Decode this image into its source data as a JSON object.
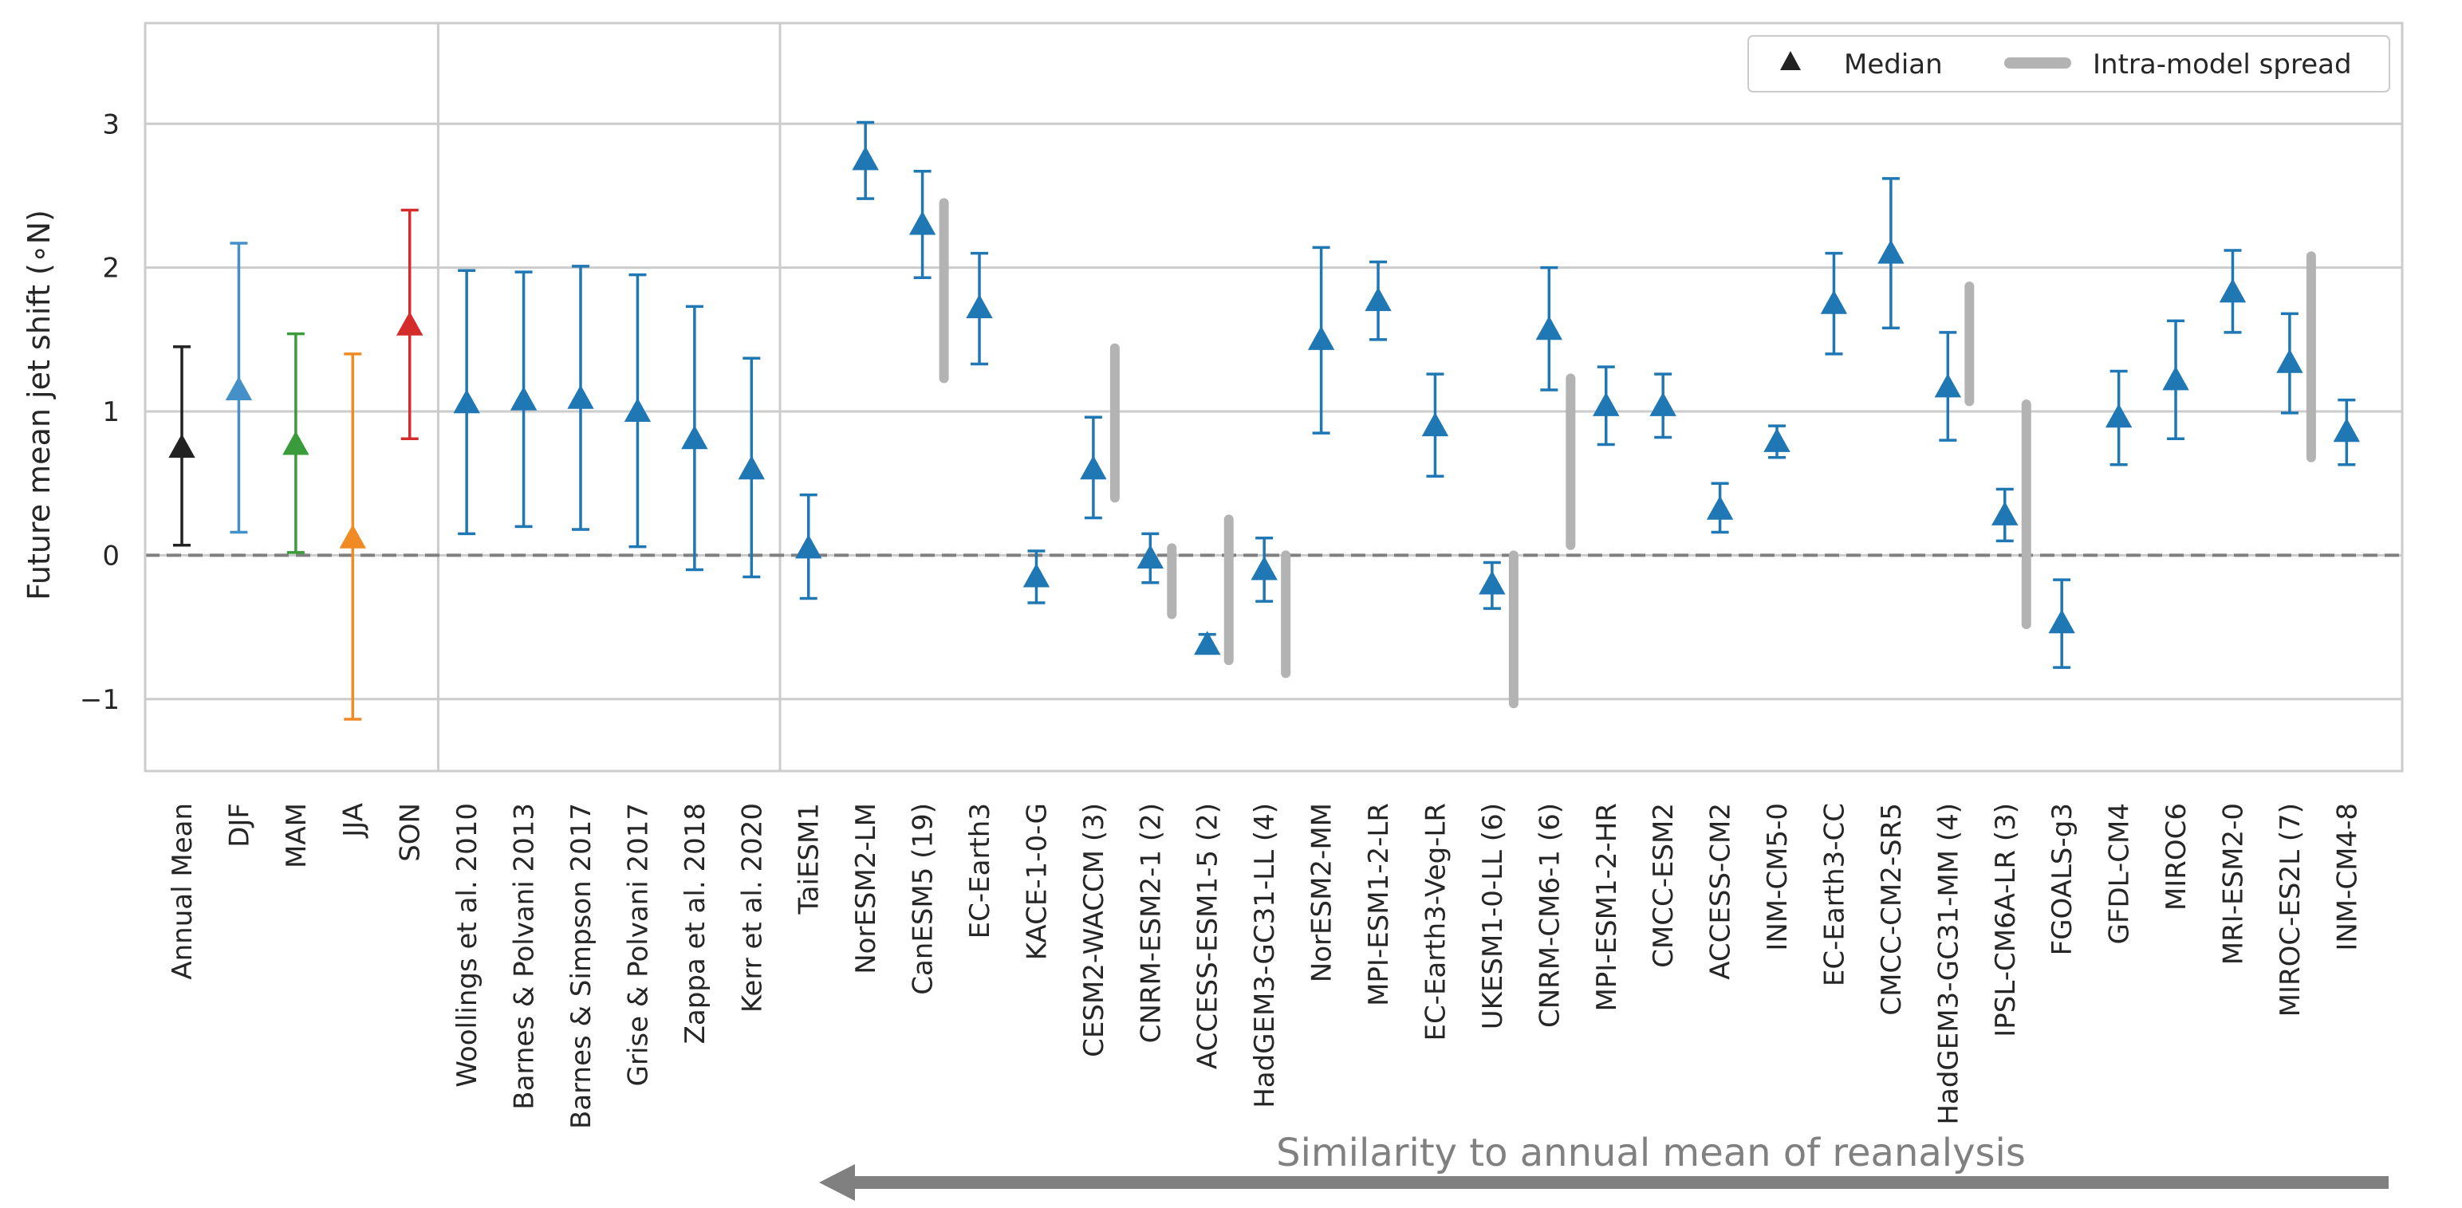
{
  "chart_data": {
    "type": "errorbar",
    "ylabel": "Future mean jet shift (∘N)",
    "ylim": [
      -1.5,
      3.7
    ],
    "yticks": [
      -1,
      0,
      1,
      2,
      3
    ],
    "ytick_labels": [
      "−1",
      "0",
      "1",
      "2",
      "3"
    ],
    "grid": true,
    "zero_line": "dashed",
    "legend": {
      "placement": "top-right",
      "entries": [
        {
          "label": "Median",
          "marker": "triangle",
          "color": "#222222"
        },
        {
          "label": "Intra-model spread",
          "marker": "thick-line",
          "color": "#b3b3b3"
        }
      ]
    },
    "groups": [
      {
        "name": "seasons",
        "count": 5
      },
      {
        "name": "literature",
        "count": 6
      },
      {
        "name": "models",
        "count": 28
      }
    ],
    "categories": [
      "Annual Mean",
      "DJF",
      "MAM",
      "JJA",
      "SON",
      "Woollings et al. 2010",
      "Barnes & Polvani 2013",
      "Barnes & Simpson 2017",
      "Grise & Polvani 2017",
      "Zappa et al. 2018",
      "Kerr et al. 2020",
      "TaiESM1",
      "NorESM2-LM",
      "CanESM5 (19)",
      "EC-Earth3",
      "KACE-1-0-G",
      "CESM2-WACCM (3)",
      "CNRM-ESM2-1 (2)",
      "ACCESS-ESM1-5 (2)",
      "HadGEM3-GC31-LL (4)",
      "NorESM2-MM",
      "MPI-ESM1-2-LR",
      "EC-Earth3-Veg-LR",
      "UKESM1-0-LL (6)",
      "CNRM-CM6-1 (6)",
      "MPI-ESM1-2-HR",
      "CMCC-ESM2",
      "ACCESS-CM2",
      "INM-CM5-0",
      "EC-Earth3-CC",
      "CMCC-CM2-SR5",
      "HadGEM3-GC31-MM (4)",
      "IPSL-CM6A-LR (3)",
      "FGOALS-g3",
      "GFDL-CM4",
      "MIROC6",
      "MRI-ESM2-0",
      "MIROC-ES2L (7)",
      "INM-CM4-8"
    ],
    "series": [
      {
        "name": "Median",
        "values": [
          0.75,
          1.15,
          0.77,
          0.12,
          1.6,
          1.06,
          1.08,
          1.09,
          1.0,
          0.81,
          0.6,
          0.05,
          2.75,
          2.3,
          1.72,
          -0.15,
          0.6,
          -0.02,
          -0.62,
          -0.1,
          1.5,
          1.77,
          0.9,
          -0.2,
          1.57,
          1.04,
          1.04,
          0.32,
          0.79,
          1.75,
          2.1,
          1.17,
          0.28,
          -0.47,
          0.96,
          1.22,
          1.83,
          1.34,
          0.86
        ],
        "lower": [
          0.07,
          0.16,
          0.02,
          -1.14,
          0.81,
          0.15,
          0.2,
          0.18,
          0.06,
          -0.1,
          -0.15,
          -0.3,
          2.48,
          1.93,
          1.33,
          -0.33,
          0.26,
          -0.19,
          -0.65,
          -0.32,
          0.85,
          1.5,
          0.55,
          -0.37,
          1.15,
          0.77,
          0.82,
          0.16,
          0.68,
          1.4,
          1.58,
          0.8,
          0.1,
          -0.78,
          0.63,
          0.81,
          1.55,
          0.99,
          0.63
        ],
        "upper": [
          1.45,
          2.17,
          1.54,
          1.4,
          2.4,
          1.98,
          1.97,
          2.01,
          1.95,
          1.73,
          1.37,
          0.42,
          3.01,
          2.67,
          2.1,
          0.03,
          0.96,
          0.15,
          -0.55,
          0.12,
          2.14,
          2.04,
          1.26,
          -0.05,
          2.0,
          1.31,
          1.26,
          0.5,
          0.9,
          2.1,
          2.62,
          1.55,
          0.46,
          -0.17,
          1.28,
          1.63,
          2.12,
          1.68,
          1.08
        ],
        "colors": [
          "#222222",
          "#4590c8",
          "#3a9b3a",
          "#f08a24",
          "#d42b2b",
          "#1f77b4",
          "#1f77b4",
          "#1f77b4",
          "#1f77b4",
          "#1f77b4",
          "#1f77b4",
          "#1f77b4",
          "#1f77b4",
          "#1f77b4",
          "#1f77b4",
          "#1f77b4",
          "#1f77b4",
          "#1f77b4",
          "#1f77b4",
          "#1f77b4",
          "#1f77b4",
          "#1f77b4",
          "#1f77b4",
          "#1f77b4",
          "#1f77b4",
          "#1f77b4",
          "#1f77b4",
          "#1f77b4",
          "#1f77b4",
          "#1f77b4",
          "#1f77b4",
          "#1f77b4",
          "#1f77b4",
          "#1f77b4",
          "#1f77b4",
          "#1f77b4",
          "#1f77b4",
          "#1f77b4",
          "#1f77b4"
        ]
      }
    ],
    "intra_model_spread": [
      {
        "category": "CanESM5 (19)",
        "low": 1.23,
        "high": 2.45
      },
      {
        "category": "CESM2-WACCM (3)",
        "low": 0.4,
        "high": 1.44
      },
      {
        "category": "CNRM-ESM2-1 (2)",
        "low": -0.41,
        "high": 0.05
      },
      {
        "category": "ACCESS-ESM1-5 (2)",
        "low": -0.73,
        "high": 0.25
      },
      {
        "category": "HadGEM3-GC31-LL (4)",
        "low": -0.82,
        "high": 0.0
      },
      {
        "category": "UKESM1-0-LL (6)",
        "low": -1.03,
        "high": 0.0
      },
      {
        "category": "CNRM-CM6-1 (6)",
        "low": 0.07,
        "high": 1.23
      },
      {
        "category": "HadGEM3-GC31-MM (4)",
        "low": 1.07,
        "high": 1.87
      },
      {
        "category": "IPSL-CM6A-LR (3)",
        "low": -0.48,
        "high": 1.05
      },
      {
        "category": "MIROC-ES2L (7)",
        "low": 0.68,
        "high": 2.08
      }
    ],
    "annotation": {
      "text": "Similarity to annual mean of reanalysis",
      "arrow_direction": "left"
    }
  }
}
